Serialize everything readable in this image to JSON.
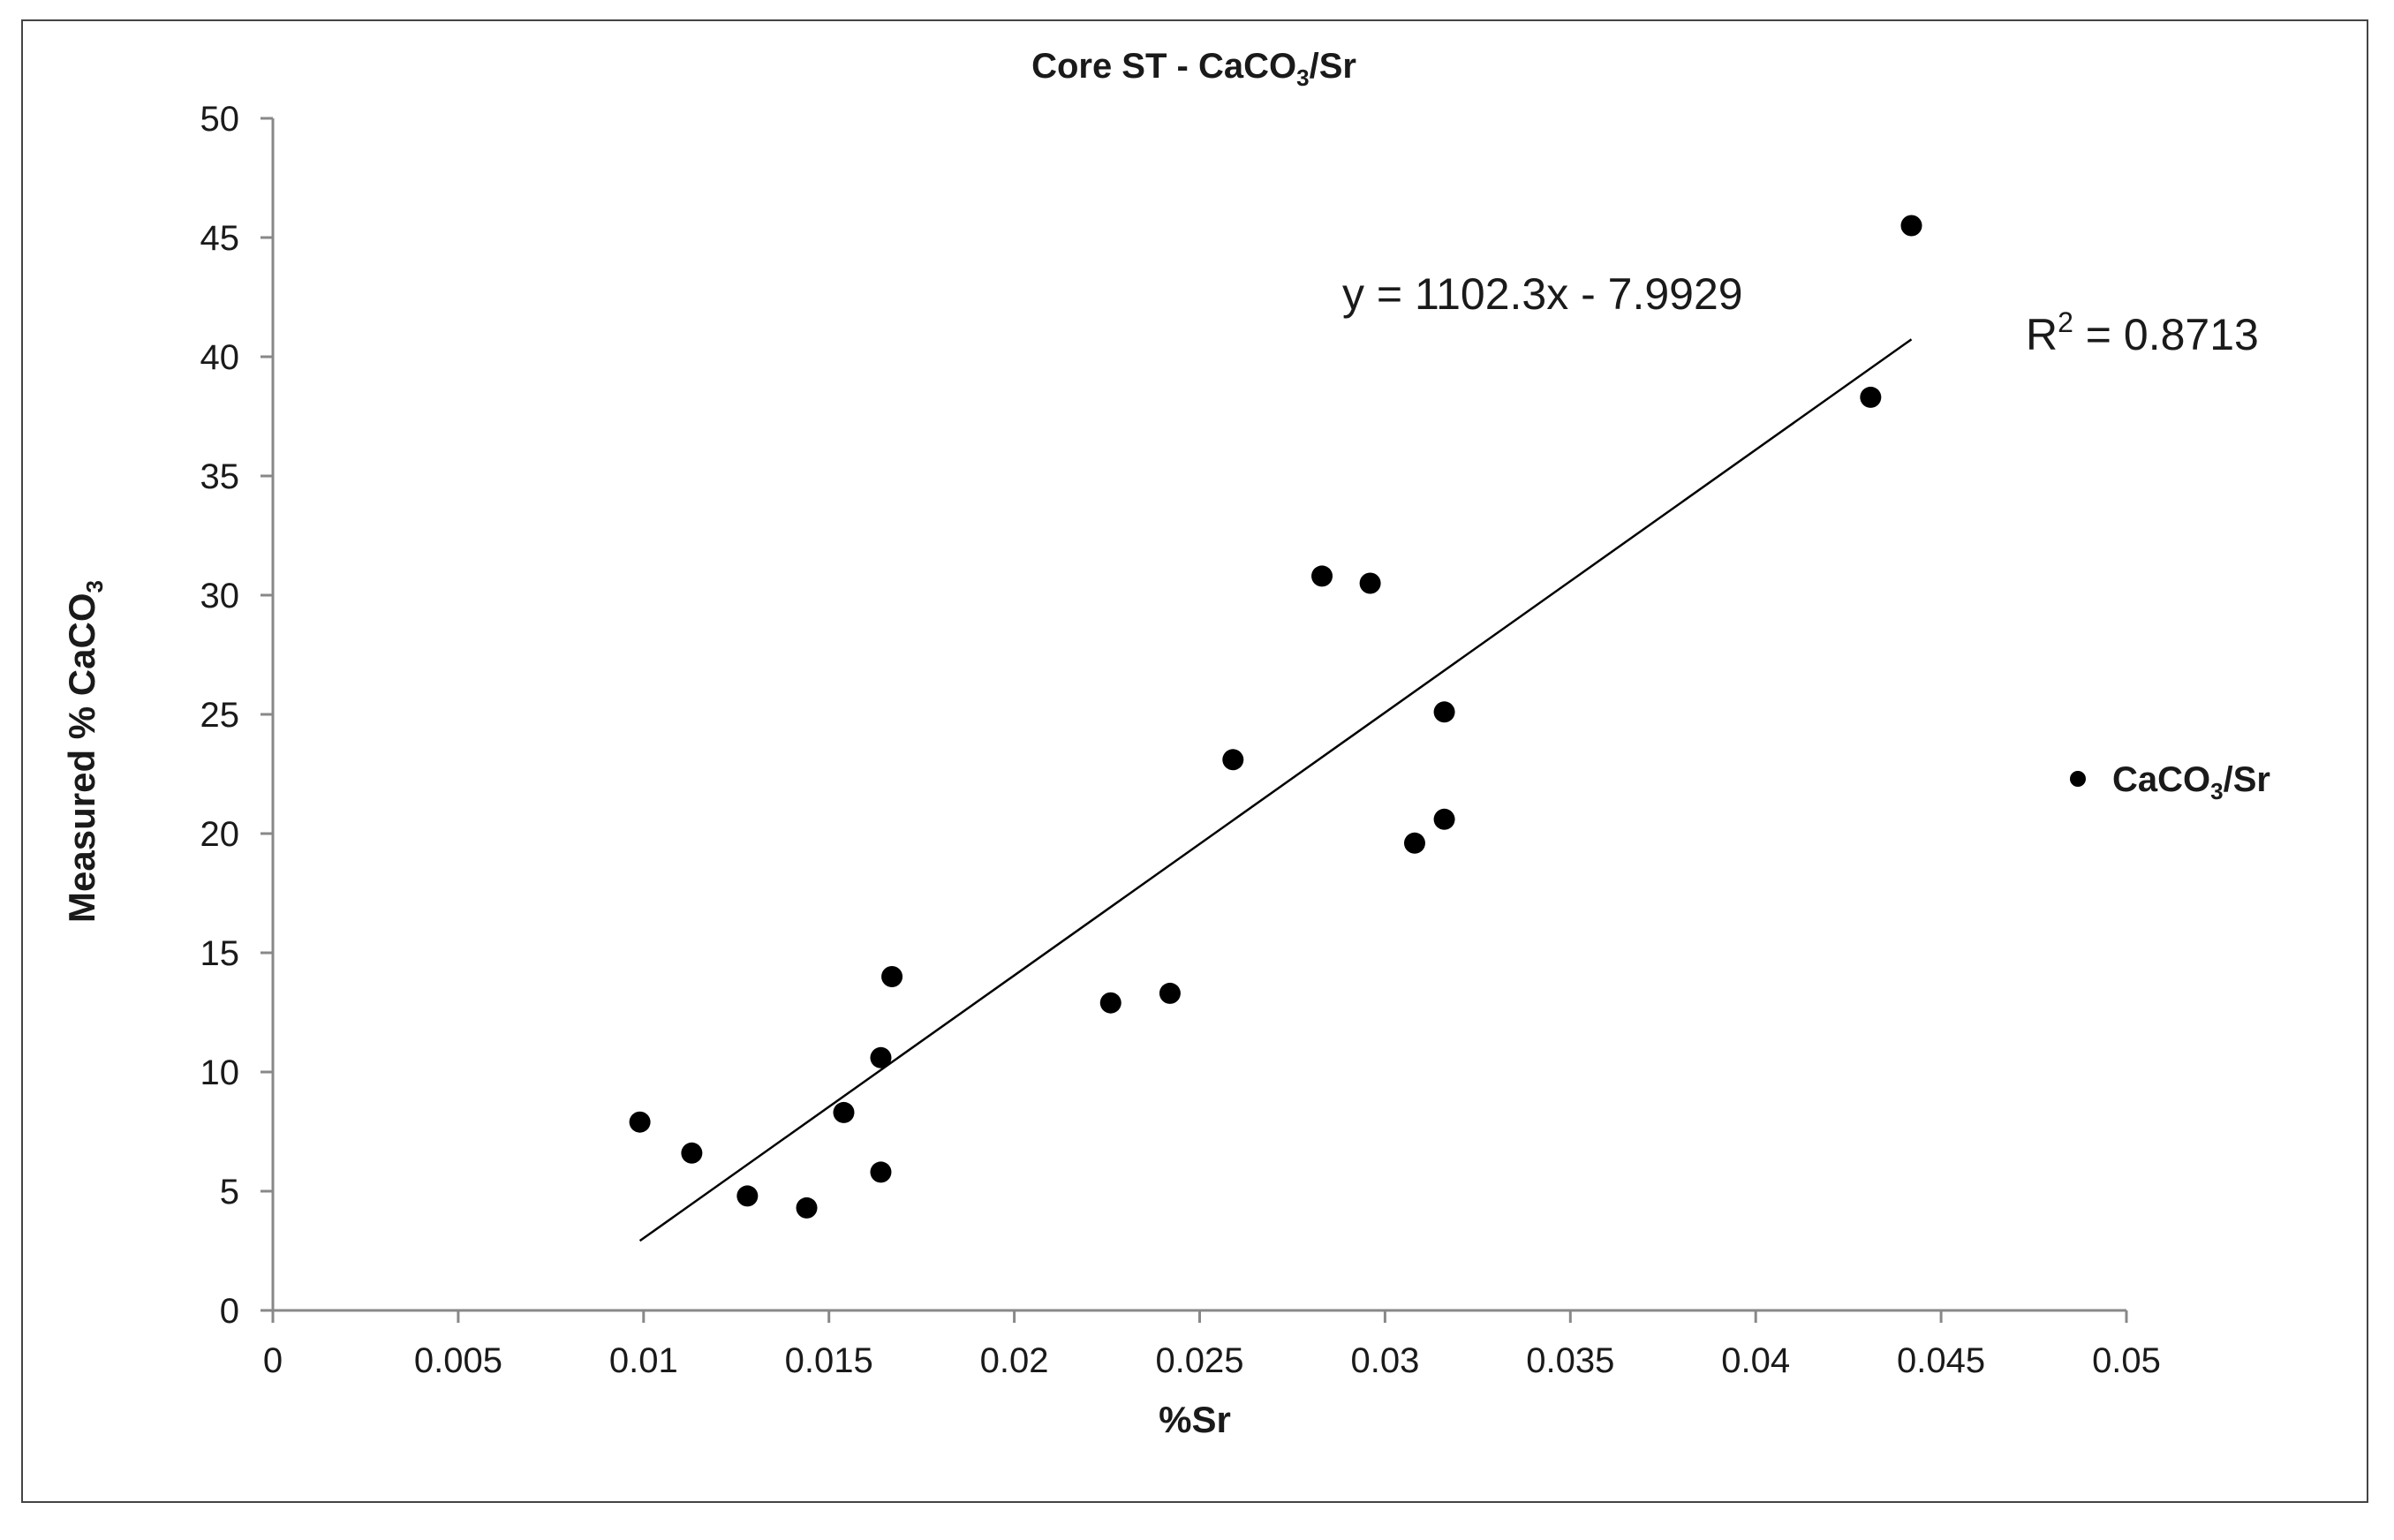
{
  "chart_data": {
    "type": "scatter",
    "title": {
      "main": "Core ST - CaCO",
      "sub": "3",
      "tail": "/Sr"
    },
    "xlabel": "%Sr",
    "ylabel": {
      "main": "Measured % CaCO",
      "sub": "3"
    },
    "xlim": [
      0,
      0.05
    ],
    "ylim": [
      0,
      50
    ],
    "x_ticks": [
      0,
      0.005,
      0.01,
      0.015,
      0.02,
      0.025,
      0.03,
      0.035,
      0.04,
      0.045,
      0.05
    ],
    "y_ticks": [
      0,
      5,
      10,
      15,
      20,
      25,
      30,
      35,
      40,
      45,
      50
    ],
    "x_tick_labels": [
      "0",
      "0.005",
      "0.01",
      "0.015",
      "0.02",
      "0.025",
      "0.03",
      "0.035",
      "0.04",
      "0.045",
      "0.05"
    ],
    "y_tick_labels": [
      "0",
      "5",
      "10",
      "15",
      "20",
      "25",
      "30",
      "35",
      "40",
      "45",
      "50"
    ],
    "grid": false,
    "legend_position": "right",
    "series": [
      {
        "name": {
          "main": "CaCO",
          "sub": "3",
          "tail": "/Sr"
        },
        "color": "#000000",
        "points": [
          {
            "x": 0.0099,
            "y": 7.9
          },
          {
            "x": 0.0113,
            "y": 6.6
          },
          {
            "x": 0.0128,
            "y": 4.8
          },
          {
            "x": 0.0144,
            "y": 4.3
          },
          {
            "x": 0.0154,
            "y": 8.3
          },
          {
            "x": 0.0164,
            "y": 5.8
          },
          {
            "x": 0.0164,
            "y": 10.6
          },
          {
            "x": 0.0167,
            "y": 14.0
          },
          {
            "x": 0.0226,
            "y": 12.9
          },
          {
            "x": 0.0242,
            "y": 13.3
          },
          {
            "x": 0.0259,
            "y": 23.1
          },
          {
            "x": 0.0283,
            "y": 30.8
          },
          {
            "x": 0.0296,
            "y": 30.5
          },
          {
            "x": 0.0308,
            "y": 19.6
          },
          {
            "x": 0.0316,
            "y": 20.6
          },
          {
            "x": 0.0316,
            "y": 25.1
          },
          {
            "x": 0.0431,
            "y": 38.3
          },
          {
            "x": 0.0442,
            "y": 45.5
          }
        ]
      }
    ],
    "trendline": {
      "type": "linear",
      "slope": 1102.3,
      "intercept": -7.9929,
      "x_range": [
        0.0099,
        0.0442
      ],
      "equation_label": "y = 1102.3x - 7.9929",
      "r2_label": {
        "main": "R",
        "sup": "2",
        "tail": " = 0.8713"
      },
      "color": "#000000"
    }
  }
}
